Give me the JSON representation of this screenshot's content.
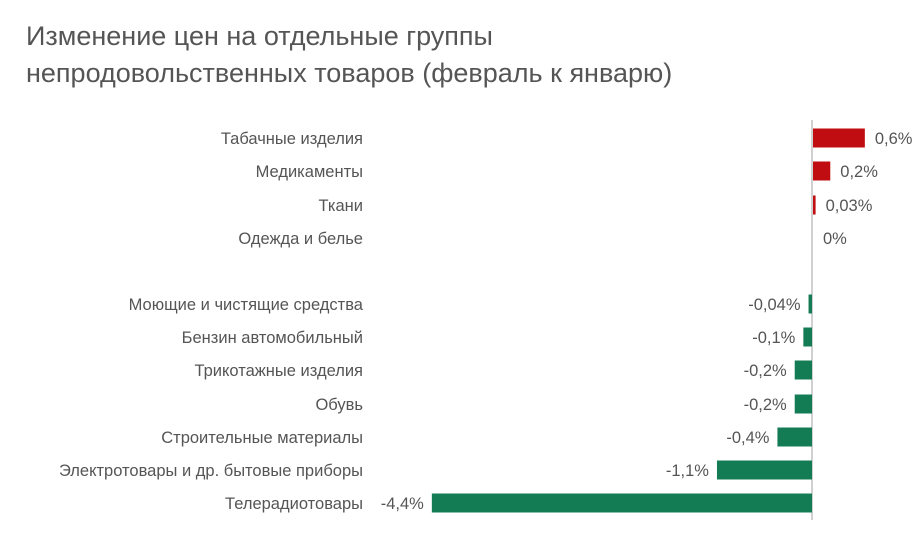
{
  "chart_data": {
    "type": "bar",
    "orientation": "horizontal",
    "title_lines": [
      "Изменение цен на отдельные группы",
      "непродовольственных товаров (февраль к январю)"
    ],
    "categories": [
      "Табачные изделия",
      "Медикаменты",
      "Ткани",
      "Одежда и белье",
      "Моющие и чистящие средства",
      "Бензин автомобильный",
      "Трикотажные изделия",
      "Обувь",
      "Строительные материалы",
      "Электротовары и др. бытовые приборы",
      "Телерадиотовары"
    ],
    "values": [
      0.6,
      0.2,
      0.03,
      0,
      -0.04,
      -0.1,
      -0.2,
      -0.2,
      -0.4,
      -1.1,
      -4.4
    ],
    "value_labels": [
      "0,6%",
      "0,2%",
      "0,03%",
      "0%",
      "-0,04%",
      "-0,1%",
      "-0,2%",
      "-0,2%",
      "-0,4%",
      "-1,1%",
      "-4,4%"
    ],
    "unit": "%",
    "colors": {
      "positive": "#c00d12",
      "negative": "#137c54",
      "axis": "#d0d0d0"
    },
    "grid": false,
    "legend": "none"
  }
}
